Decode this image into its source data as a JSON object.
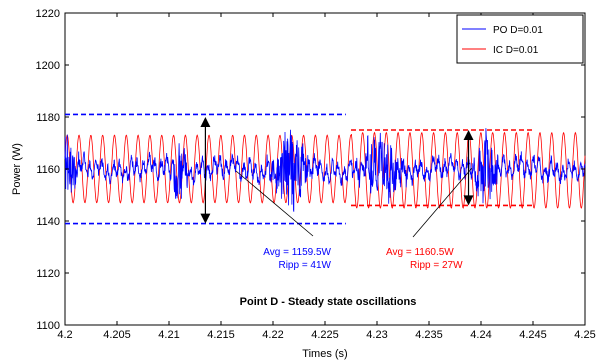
{
  "chart_data": {
    "type": "line",
    "title": "",
    "xlabel": "Times (s)",
    "ylabel": "Power (W)",
    "xlim": [
      4.2,
      4.25
    ],
    "ylim": [
      1100,
      1220
    ],
    "xticks": [
      "4.2",
      "4.205",
      "4.21",
      "4.215",
      "4.22",
      "4.225",
      "4.23",
      "4.235",
      "4.24",
      "4.245",
      "4.25"
    ],
    "yticks": [
      "1100",
      "1120",
      "1140",
      "1160",
      "1180",
      "1200",
      "1220"
    ],
    "grid": false,
    "legend_position": "top-right",
    "series": [
      {
        "name": "PO D=0.01",
        "color": "#0000ff",
        "style": "noisy oscillation around mean",
        "mean": 1160,
        "envelope_min": 1140,
        "envelope_max": 1180
      },
      {
        "name": "IC D=0.01",
        "color": "#ff0000",
        "style": "periodic oscillation",
        "mean": 1160,
        "min_first_half": 1147,
        "max_first_half": 1173,
        "min_second_half": 1145,
        "max_second_half": 1174,
        "cycles": 44
      }
    ],
    "reference_lines": [
      {
        "color": "#0000ff",
        "y": 1181,
        "x_range": [
          4.2,
          4.227
        ]
      },
      {
        "color": "#0000ff",
        "y": 1139,
        "x_range": [
          4.2,
          4.227
        ]
      },
      {
        "color": "#ff0000",
        "y": 1175,
        "x_range": [
          4.2275,
          4.245
        ]
      },
      {
        "color": "#ff0000",
        "y": 1146,
        "x_range": [
          4.2275,
          4.245
        ]
      }
    ],
    "arrows": [
      {
        "x": 4.2135,
        "y_from": 1139,
        "y_to": 1180
      },
      {
        "x": 4.2388,
        "y_from": 1146,
        "y_to": 1175
      }
    ],
    "annotations": [
      {
        "id": "blue_avg",
        "text": "Avg = 1159.5W",
        "color": "#0000ff"
      },
      {
        "id": "blue_ripp",
        "text": "Ripp = 41W",
        "color": "#0000ff"
      },
      {
        "id": "red_avg",
        "text": "Avg = 1160.5W",
        "color": "#ff0000"
      },
      {
        "id": "red_ripp",
        "text": "Ripp = 27W",
        "color": "#ff0000"
      },
      {
        "id": "note",
        "text": "Point D - Steady state oscillations",
        "color": "#000000"
      }
    ]
  }
}
